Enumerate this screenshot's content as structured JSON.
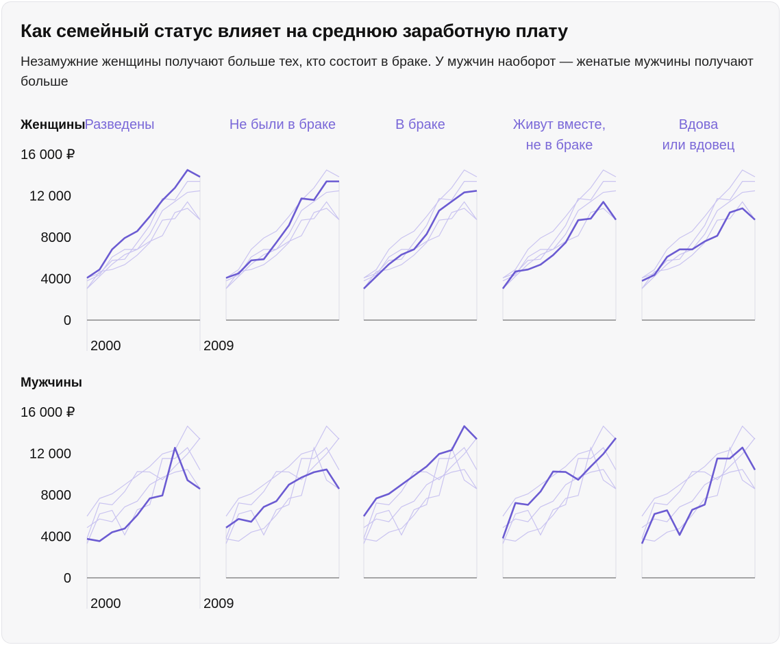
{
  "title": "Как семейный статус влияет на среднюю заработную плату",
  "subtitle": "Незамужние женщины получают больше тех, кто состоит в браке. У мужчин наоборот — женатые мужчины получают больше",
  "chart_data": {
    "type": "line",
    "layout": "small-multiples",
    "x": [
      2000,
      2001,
      2002,
      2003,
      2004,
      2005,
      2006,
      2007,
      2008,
      2009
    ],
    "x_tick_labels": [
      "2000",
      "2009"
    ],
    "y_tick_labels": [
      "0",
      "4000",
      "8000",
      "12 000",
      "16 000 ₽"
    ],
    "y_ticks": [
      0,
      4000,
      8000,
      12000,
      16000
    ],
    "ylim": [
      0,
      16000
    ],
    "categories": [
      {
        "label": [
          "Разведены"
        ]
      },
      {
        "label": [
          "Не были в браке"
        ]
      },
      {
        "label": [
          "В браке"
        ]
      },
      {
        "label": [
          "Живут вместе,",
          "не в браке"
        ]
      },
      {
        "label": [
          "Вдова",
          "или вдовец"
        ]
      }
    ],
    "rows": [
      {
        "name": "Женщины",
        "series": [
          [
            4070,
            4880,
            6820,
            7920,
            8580,
            10000,
            11550,
            12760,
            14480,
            13820
          ],
          [
            4070,
            4510,
            5760,
            5870,
            7480,
            9130,
            11730,
            11590,
            13380,
            13380
          ],
          [
            3040,
            4220,
            5390,
            6310,
            6820,
            8290,
            10560,
            11440,
            12320,
            12470
          ],
          [
            3040,
            4690,
            4880,
            5350,
            6270,
            7480,
            9640,
            9790,
            11400,
            9680
          ],
          [
            3780,
            4360,
            6090,
            6820,
            6820,
            7590,
            8140,
            10380,
            10780,
            9680
          ]
        ]
      },
      {
        "name": "Мужчины",
        "series": [
          [
            3760,
            3540,
            4400,
            4750,
            6050,
            7660,
            7940,
            12540,
            9420,
            8580
          ],
          [
            4840,
            5680,
            5410,
            6840,
            7390,
            8980,
            9680,
            10190,
            10450,
            8580
          ],
          [
            5940,
            7660,
            8100,
            8980,
            9860,
            10740,
            11950,
            12320,
            14630,
            13380
          ],
          [
            3810,
            7220,
            7040,
            8320,
            10250,
            10210,
            9460,
            10740,
            11950,
            13490
          ],
          [
            3300,
            6160,
            6510,
            4140,
            6560,
            7060,
            11510,
            11510,
            12560,
            10410
          ]
        ]
      }
    ],
    "colors": {
      "highlight": "#6b5bd2",
      "context": "#c9c3f0",
      "axis": "#8a8a8a"
    },
    "grid": false
  }
}
